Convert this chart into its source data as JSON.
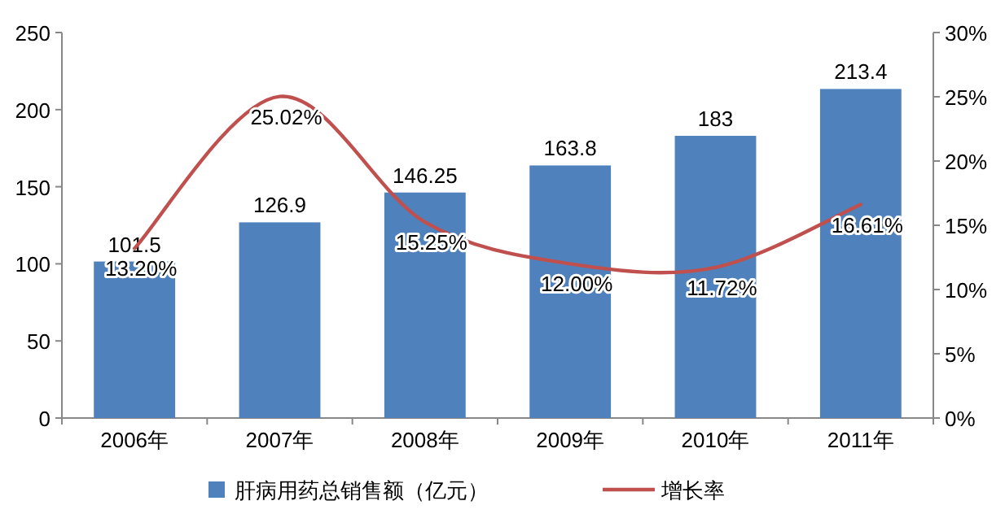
{
  "chart_data": {
    "type": "bar",
    "categories": [
      "2006年",
      "2007年",
      "2008年",
      "2009年",
      "2010年",
      "2011年"
    ],
    "series": [
      {
        "name": "肝病用药总销售额（亿元）",
        "color": "#4f81bd",
        "values": [
          101.5,
          126.9,
          146.25,
          163.8,
          183,
          213.4
        ],
        "value_labels": [
          "101.5",
          "126.9",
          "146.25",
          "163.8",
          "183",
          "213.4"
        ]
      },
      {
        "name": "增长率",
        "type": "line",
        "axis": "y2",
        "color": "#c0504d",
        "values": [
          13.2,
          25.02,
          15.25,
          12.0,
          11.72,
          16.61
        ],
        "value_labels": [
          "13.20%",
          "25.02%",
          "15.25%",
          "12.00%",
          "11.72%",
          "16.61%"
        ]
      }
    ],
    "ylim": [
      0,
      250
    ],
    "yticks": [
      0,
      50,
      100,
      150,
      200,
      250
    ],
    "y2lim": [
      0,
      30
    ],
    "y2ticks": [
      {
        "value": 0,
        "label": "0%"
      },
      {
        "value": 5,
        "label": "5%"
      },
      {
        "value": 10,
        "label": "10%"
      },
      {
        "value": 15,
        "label": "15%"
      },
      {
        "value": 20,
        "label": "20%"
      },
      {
        "value": 25,
        "label": "25%"
      },
      {
        "value": 30,
        "label": "30%"
      }
    ],
    "legend": "bottom"
  }
}
